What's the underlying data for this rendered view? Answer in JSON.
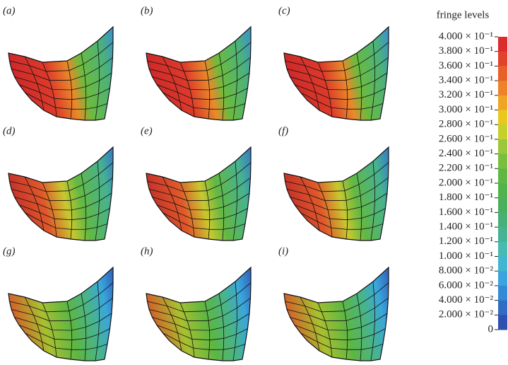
{
  "panels": [
    {
      "label": "(a)"
    },
    {
      "label": "(b)"
    },
    {
      "label": "(c)"
    },
    {
      "label": "(d)"
    },
    {
      "label": "(e)"
    },
    {
      "label": "(f)"
    },
    {
      "label": "(g)"
    },
    {
      "label": "(h)"
    },
    {
      "label": "(i)"
    }
  ],
  "legend": {
    "title": "fringe levels",
    "lim": [
      0,
      0.4
    ],
    "ticks": [
      {
        "value": 0.4,
        "label": "4.000 × 10⁻¹"
      },
      {
        "value": 0.38,
        "label": "3.800 × 10⁻¹"
      },
      {
        "value": 0.36,
        "label": "3.600 × 10⁻¹"
      },
      {
        "value": 0.34,
        "label": "3.400 × 10⁻¹"
      },
      {
        "value": 0.32,
        "label": "3.200 × 10⁻¹"
      },
      {
        "value": 0.3,
        "label": "3.000 × 10⁻¹"
      },
      {
        "value": 0.28,
        "label": "2.800 × 10⁻¹"
      },
      {
        "value": 0.26,
        "label": "2.600 × 10⁻¹"
      },
      {
        "value": 0.24,
        "label": "2.400 × 10⁻¹"
      },
      {
        "value": 0.22,
        "label": "2.200 × 10⁻¹"
      },
      {
        "value": 0.2,
        "label": "2.000 × 10⁻¹"
      },
      {
        "value": 0.18,
        "label": "1.800 × 10⁻¹"
      },
      {
        "value": 0.16,
        "label": "1.600 × 10⁻¹"
      },
      {
        "value": 0.14,
        "label": "1.400 × 10⁻¹"
      },
      {
        "value": 0.12,
        "label": "1.200 × 10⁻¹"
      },
      {
        "value": 0.1,
        "label": "1.000 × 10⁻¹"
      },
      {
        "value": 0.08,
        "label": "8.000 × 10⁻²"
      },
      {
        "value": 0.06,
        "label": "6.000 × 10⁻²"
      },
      {
        "value": 0.04,
        "label": "4.000 × 10⁻²"
      },
      {
        "value": 0.02,
        "label": "2.000 × 10⁻²"
      },
      0
    ],
    "colors": [
      "#dd2b2b",
      "#e2422b",
      "#e8602a",
      "#ed8228",
      "#f0a423",
      "#e9c81e",
      "#c6d02c",
      "#9cc73a",
      "#78bf3e",
      "#5fb844",
      "#52b34c",
      "#4ab05e",
      "#47b076",
      "#46b493",
      "#48bab2",
      "#40b6d2",
      "#3aa4de",
      "#338ad6",
      "#306cc6",
      "#2f50ae"
    ]
  }
}
